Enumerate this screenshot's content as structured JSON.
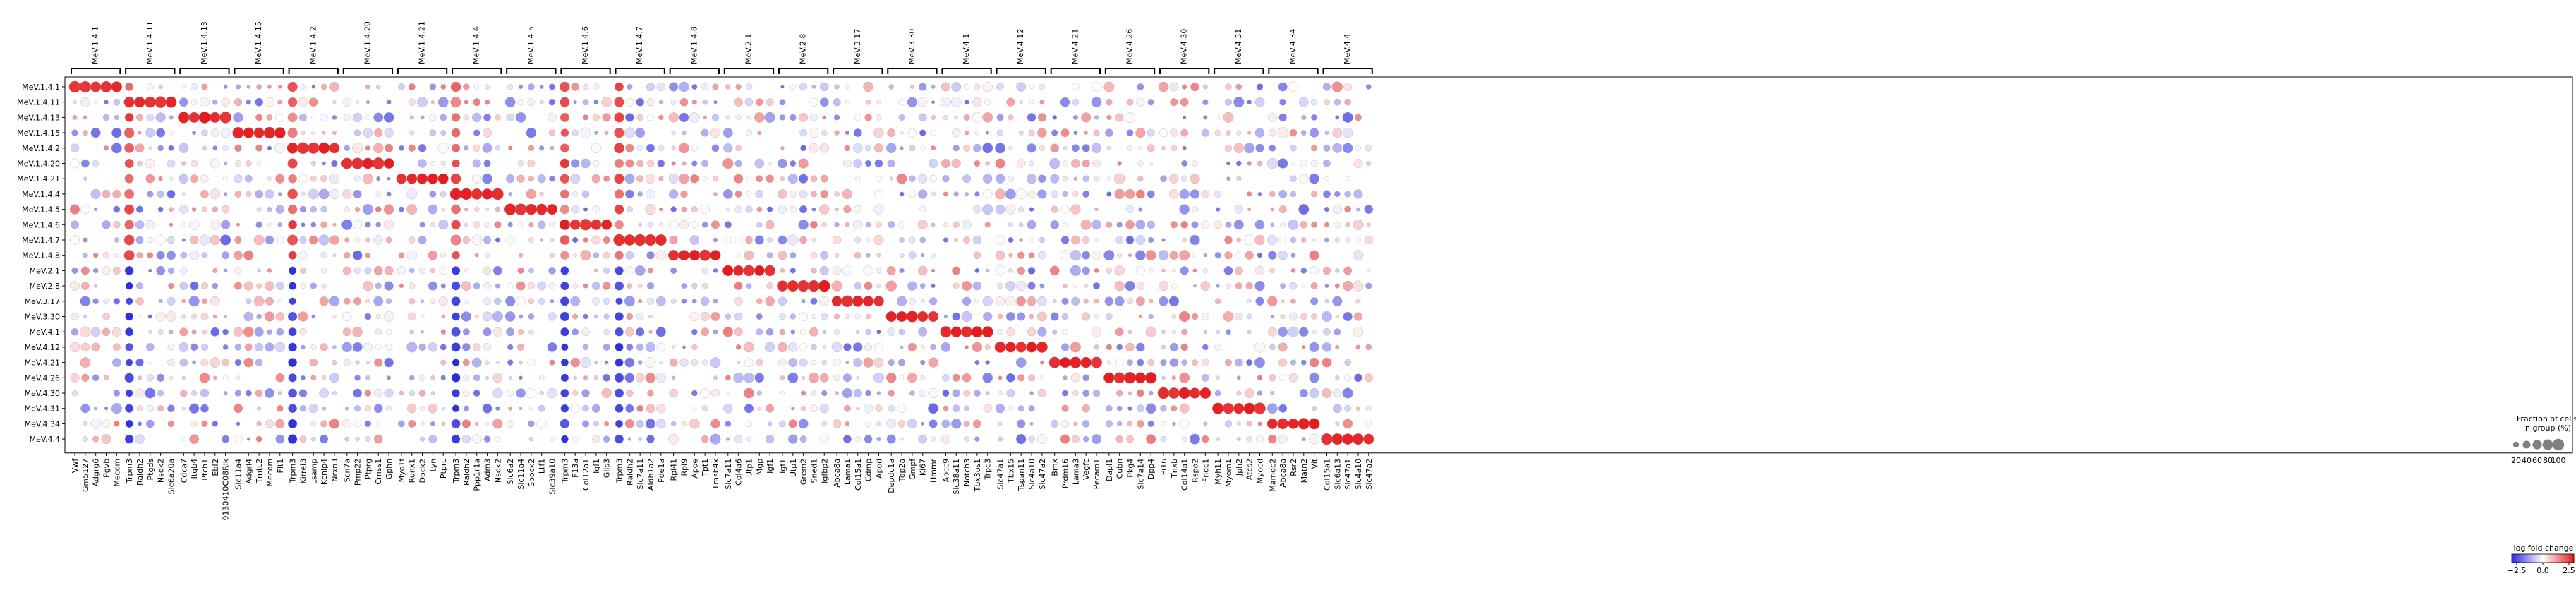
{
  "chart_data": {
    "type": "scatter",
    "subtype": "dot-plot",
    "rows": [
      "MeV.1.4.1",
      "MeV.1.4.11",
      "MeV.1.4.13",
      "MeV.1.4.15",
      "MeV.1.4.2",
      "MeV.1.4.20",
      "MeV.1.4.21",
      "MeV.1.4.4",
      "MeV.1.4.5",
      "MeV.1.4.6",
      "MeV.1.4.7",
      "MeV.1.4.8",
      "MeV.2.1",
      "MeV.2.8",
      "MeV.3.17",
      "MeV.3.30",
      "MeV.4.1",
      "MeV.4.12",
      "MeV.4.21",
      "MeV.4.26",
      "MeV.4.30",
      "MeV.4.31",
      "MeV.4.34",
      "MeV.4.4"
    ],
    "groups": [
      {
        "name": "MeV.1.4.1",
        "genes": [
          "Vwf",
          "Gm5127",
          "Adgrg6",
          "Pgvb",
          "Mecom"
        ]
      },
      {
        "name": "MeV.1.4.11",
        "genes": [
          "Trpm3",
          "Raldh2",
          "Ptgds",
          "Nsdk2",
          "Slc6a20a"
        ]
      },
      {
        "name": "MeV.1.4.13",
        "genes": [
          "Cdca7",
          "Itgb4",
          "Ptch1",
          "Ebf2",
          "9130410C08Rik"
        ]
      },
      {
        "name": "MeV.1.4.15",
        "genes": [
          "Slc11a4",
          "Adgrl4",
          "Tmtc2",
          "Mecom",
          "Flt1"
        ]
      },
      {
        "name": "MeV.1.4.2",
        "genes": [
          "Trpm3",
          "Kirrel3",
          "Lsamp",
          "Kcnip4",
          "Nrxn3"
        ]
      },
      {
        "name": "MeV.1.4.20",
        "genes": [
          "Scn7a",
          "Pmp22",
          "Ptprg",
          "Cmss1",
          "Gphn"
        ]
      },
      {
        "name": "MeV.1.4.21",
        "genes": [
          "Myo1f",
          "Runx1",
          "Dock2",
          "Lyn",
          "Ptprc"
        ]
      },
      {
        "name": "MeV.1.4.4",
        "genes": [
          "Trpm3",
          "Raldh2",
          "Ppp1r1a",
          "Adm3",
          "Nsdk2"
        ]
      },
      {
        "name": "MeV.1.4.5",
        "genes": [
          "Slc6a2",
          "Slc11a4",
          "Spock2",
          "Ltf1",
          "Slc39a10"
        ]
      },
      {
        "name": "MeV.1.4.6",
        "genes": [
          "Trpm3",
          "F13a",
          "Col12a1",
          "Igf1",
          "Glis3"
        ]
      },
      {
        "name": "MeV.1.4.7",
        "genes": [
          "Trpm3",
          "Raldh2",
          "Slc7a11",
          "Aldh1a2",
          "Pde1a"
        ]
      },
      {
        "name": "MeV.1.4.8",
        "genes": [
          "Rpl41",
          "Rpl9",
          "Apoe",
          "Tpt1",
          "Tmsb4x"
        ]
      },
      {
        "name": "MeV.2.1",
        "genes": [
          "Slc7a11",
          "Col4a6",
          "Utp1",
          "Mgp",
          "Igf1"
        ]
      },
      {
        "name": "MeV.2.8",
        "genes": [
          "Igf1",
          "Utp1",
          "Grem2",
          "Sned1",
          "Igfbp2"
        ]
      },
      {
        "name": "MeV.3.17",
        "genes": [
          "Abca8a",
          "Lama1",
          "Col15a1",
          "Cdmp",
          "Apod"
        ]
      },
      {
        "name": "MeV.3.30",
        "genes": [
          "Depdc1a",
          "Top2a",
          "Gmpf",
          "Ki67",
          "Hmmr"
        ]
      },
      {
        "name": "MeV.4.1",
        "genes": [
          "Abcc9",
          "Slc38a11",
          "Notch3",
          "Tbx3os1",
          "Trpc3"
        ]
      },
      {
        "name": "MeV.4.12",
        "genes": [
          "Slc47a1",
          "Tbx15",
          "Tspan11",
          "Slc4a10",
          "Slc47a2"
        ]
      },
      {
        "name": "MeV.4.21",
        "genes": [
          "Bmx",
          "Prdm16",
          "Lama3",
          "Vegfc",
          "Pecam1"
        ]
      },
      {
        "name": "MeV.4.26",
        "genes": [
          "Dapl1",
          "Cubn",
          "Pkg4",
          "Slc7a14",
          "Dpp4"
        ]
      },
      {
        "name": "MeV.4.30",
        "genes": [
          "Pi16",
          "Tnxb",
          "Col14a1",
          "Rspo2",
          "Fndc1"
        ]
      },
      {
        "name": "MeV.4.31",
        "genes": [
          "Myh11",
          "Myom1",
          "Jph2",
          "Atcs2",
          "Myocd"
        ]
      },
      {
        "name": "MeV.4.34",
        "genes": [
          "Mamdc2",
          "Abca8a",
          "Rsr2",
          "Matn2",
          "Vit"
        ]
      },
      {
        "name": "MeV.4.4",
        "genes": [
          "Col15a1",
          "Slc6a13",
          "Slc47a1",
          "Slc4a10",
          "Slc47a2"
        ]
      }
    ],
    "xlabel": "",
    "ylabel": "",
    "color_scale": {
      "label": "log fold change",
      "min": -2.5,
      "max": 2.5,
      "ticks": [
        "−2.5",
        "0.0",
        "2.5"
      ],
      "low_color": "#2a2ae0",
      "mid_color": "#ffffff",
      "high_color": "#e41a1c"
    },
    "size_scale": {
      "label": "Fraction of cells in group (%)",
      "ticks": [
        20,
        40,
        60,
        80,
        100
      ]
    },
    "values_note": "Each row strongly expresses its own marker gene block (~log fold change 2.5, ~80-100% of cells)."
  },
  "legend": {
    "size_title_line1": "Fraction of cells",
    "size_title_line2": "in group (%)",
    "color_title": "log fold change"
  },
  "colors": {
    "pos": "#e41a1c",
    "neg": "#2a2ae0",
    "axis": "#000000"
  }
}
